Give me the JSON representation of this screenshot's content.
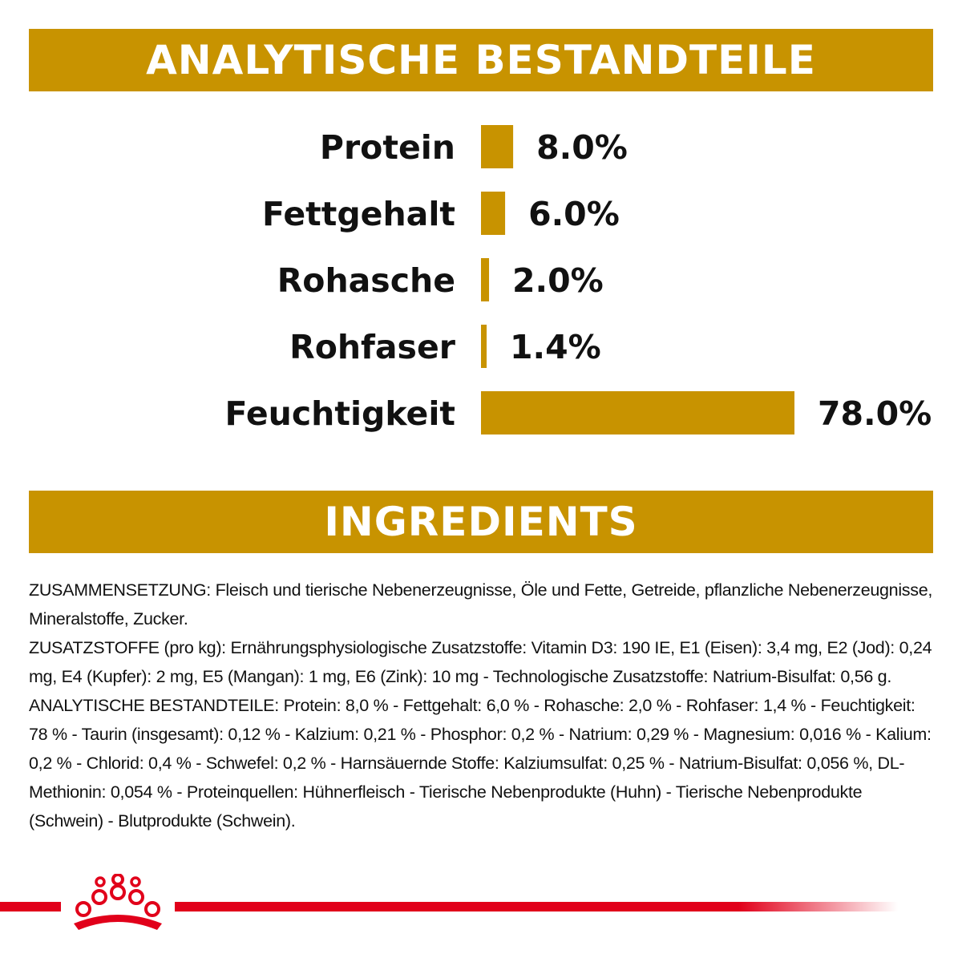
{
  "colors": {
    "accent": "#C89300",
    "brand_red": "#E1001A",
    "text": "#111111"
  },
  "header": {
    "title": "ANALYTISCHE BESTANDTEILE"
  },
  "chart_data": {
    "type": "bar",
    "orientation": "horizontal",
    "categories": [
      "Protein",
      "Fettgehalt",
      "Rohasche",
      "Rohfaser",
      "Feuchtigkeit"
    ],
    "values": [
      8.0,
      6.0,
      2.0,
      1.4,
      78.0
    ],
    "data_labels": [
      "8.0%",
      "6.0%",
      "2.0%",
      "1.4%",
      "78.0%"
    ],
    "xlim": [
      0,
      78
    ],
    "grid": false,
    "legend": "none"
  },
  "ingredients": {
    "title": "INGREDIENTS",
    "paragraphs": [
      "ZUSAMMENSETZUNG: Fleisch und tierische Nebenerzeugnisse, Öle und Fette, Getreide, pflanzliche Nebenerzeugnisse, Mineralstoffe, Zucker.",
      "ZUSATZSTOFFE (pro kg): Ernährungsphysiologische Zusatzstoffe: Vitamin D3: 190 IE, E1 (Eisen): 3,4 mg, E2 (Jod): 0,24 mg, E4 (Kupfer): 2 mg, E5 (Mangan): 1 mg, E6 (Zink): 10 mg - Technologische Zusatzstoffe: Natrium-Bisulfat: 0,56 g.",
      "ANALYTISCHE BESTANDTEILE: Protein: 8,0 % - Fettgehalt: 6,0 % - Rohasche: 2,0 % - Rohfaser: 1,4 % - Feuchtigkeit: 78 % - Taurin (insgesamt): 0,12 % - Kalzium: 0,21 % - Phosphor: 0,2 % - Natrium: 0,29 % - Magnesium: 0,016 % - Kalium: 0,2 % - Chlorid: 0,4 % - Schwefel: 0,2 % - Harnsäuernde Stoffe: Kalziumsulfat: 0,25 % - Natrium-Bisulfat: 0,056 %, DL-Methionin: 0,054 % - Proteinquellen: Hühnerfleisch - Tierische Nebenprodukte (Huhn) - Tierische Nebenprodukte (Schwein) - Blutprodukte (Schwein)."
    ]
  },
  "footer": {
    "logo_icon": "crown-icon"
  }
}
